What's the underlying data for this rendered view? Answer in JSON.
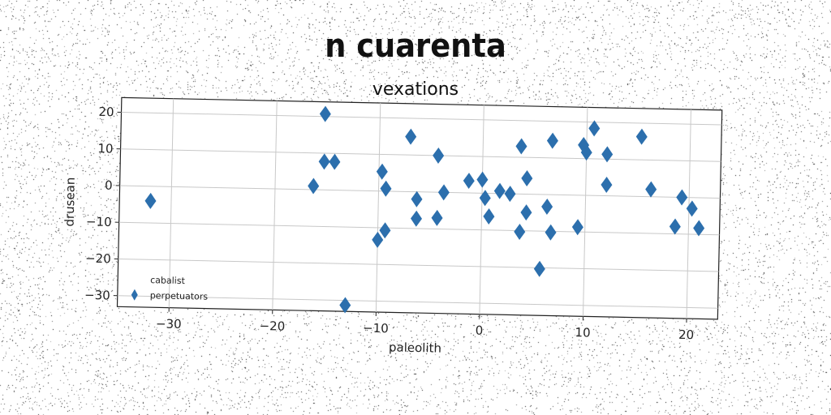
{
  "suptitle": "n cuarenta",
  "chart_data": {
    "type": "scatter",
    "title": "vexations",
    "xlabel": "paleolith",
    "ylabel": "drusean",
    "xlim": [
      -35,
      23
    ],
    "ylim": [
      -33,
      24
    ],
    "xticks": [
      -30,
      -20,
      -10,
      0,
      10,
      20
    ],
    "yticks": [
      -30,
      -20,
      -10,
      0,
      10,
      20
    ],
    "tick_labels_x": [
      "−30",
      "−20",
      "−10",
      "0",
      "10",
      "20"
    ],
    "tick_labels_y": [
      "−30",
      "−20",
      "−10",
      "0",
      "10",
      "20"
    ],
    "grid": true,
    "marker": "thin_diamond",
    "color": "#2c6fad",
    "legend": {
      "title": "cabalist",
      "placement": "lower-left",
      "entries": [
        "perpetuators"
      ]
    },
    "series": [
      {
        "name": "perpetuators",
        "points": [
          [
            -32,
            -4
          ],
          [
            -16.3,
            1
          ],
          [
            -15.3,
            7.7
          ],
          [
            -14.3,
            7.7
          ],
          [
            -15.3,
            20.7
          ],
          [
            -13,
            -31.3
          ],
          [
            -10,
            -13.3
          ],
          [
            -9.3,
            -10.7
          ],
          [
            -9.7,
            5.3
          ],
          [
            -9.3,
            0.7
          ],
          [
            -7,
            15
          ],
          [
            -6.3,
            -2
          ],
          [
            -6.3,
            -7.3
          ],
          [
            -4.3,
            -7
          ],
          [
            -4.3,
            10
          ],
          [
            -3.7,
            0
          ],
          [
            -1.3,
            3.3
          ],
          [
            0,
            3.7
          ],
          [
            0.3,
            -1.3
          ],
          [
            0.7,
            -6.3
          ],
          [
            1.7,
            0.7
          ],
          [
            2.7,
            0
          ],
          [
            3.7,
            13
          ],
          [
            3.7,
            -10.3
          ],
          [
            4.3,
            4.3
          ],
          [
            4.3,
            -5
          ],
          [
            5.7,
            -20.3
          ],
          [
            6.7,
            14.7
          ],
          [
            6.7,
            -10.3
          ],
          [
            6.3,
            -3.3
          ],
          [
            9.3,
            -8.7
          ],
          [
            9.7,
            13.7
          ],
          [
            10,
            11.7
          ],
          [
            10.7,
            18.3
          ],
          [
            12,
            3
          ],
          [
            12,
            11.3
          ],
          [
            15.3,
            16.3
          ],
          [
            16.3,
            2
          ],
          [
            18.7,
            -8
          ],
          [
            19.3,
            0
          ],
          [
            20.3,
            -3
          ],
          [
            21,
            -8.3
          ]
        ]
      }
    ]
  }
}
